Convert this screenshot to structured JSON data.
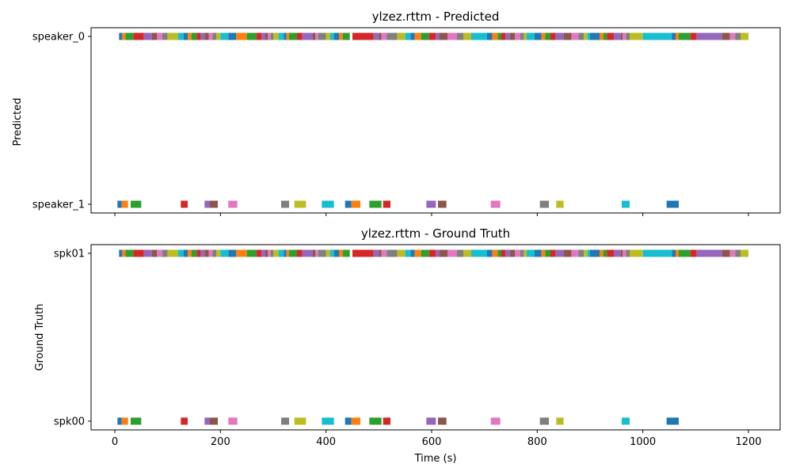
{
  "colors": [
    "#1f77b4",
    "#ff7f0e",
    "#2ca02c",
    "#d62728",
    "#9467bd",
    "#8c564b",
    "#e377c2",
    "#7f7f7f",
    "#bcbd22",
    "#17becf"
  ],
  "chart_data": [
    {
      "type": "timeline",
      "title": "ylzez.rttm - Predicted",
      "ylabel": "Predicted",
      "xlabel": "",
      "xlim": [
        -45,
        1260
      ],
      "xticks": [
        0,
        200,
        400,
        600,
        800,
        1000,
        1200
      ],
      "show_xtick_labels": false,
      "grid": false,
      "lanes": [
        {
          "label": "speaker_0",
          "segments": [
            [
              8,
              14
            ],
            [
              14,
              20
            ],
            [
              20,
              35
            ],
            [
              35,
              55
            ],
            [
              55,
              70
            ],
            [
              70,
              80
            ],
            [
              80,
              90
            ],
            [
              90,
              100
            ],
            [
              100,
              120
            ],
            [
              120,
              130
            ],
            [
              130,
              138
            ],
            [
              138,
              145
            ],
            [
              145,
              155
            ],
            [
              155,
              162
            ],
            [
              162,
              170
            ],
            [
              170,
              178
            ],
            [
              178,
              185
            ],
            [
              185,
              192
            ],
            [
              192,
              200
            ],
            [
              200,
              215
            ],
            [
              215,
              230
            ],
            [
              230,
              250
            ],
            [
              250,
              268
            ],
            [
              268,
              278
            ],
            [
              278,
              285
            ],
            [
              285,
              290
            ],
            [
              290,
              295
            ],
            [
              295,
              300
            ],
            [
              300,
              310
            ],
            [
              310,
              320
            ],
            [
              320,
              325
            ],
            [
              325,
              330
            ],
            [
              330,
              345
            ],
            [
              345,
              355
            ],
            [
              355,
              375
            ],
            [
              375,
              380
            ],
            [
              380,
              385
            ],
            [
              385,
              400
            ],
            [
              400,
              408
            ],
            [
              408,
              415
            ],
            [
              415,
              425
            ],
            [
              425,
              432
            ],
            [
              432,
              445
            ],
            [
              450,
              490
            ],
            [
              490,
              500
            ],
            [
              500,
              505
            ],
            [
              505,
              515
            ],
            [
              515,
              535
            ],
            [
              535,
              550
            ],
            [
              550,
              560
            ],
            [
              560,
              568
            ],
            [
              568,
              580
            ],
            [
              580,
              595
            ],
            [
              595,
              608
            ],
            [
              608,
              615
            ],
            [
              615,
              630
            ],
            [
              630,
              648
            ],
            [
              648,
              660
            ],
            [
              660,
              675
            ],
            [
              675,
              705
            ],
            [
              705,
              715
            ],
            [
              715,
              725
            ],
            [
              725,
              732
            ],
            [
              732,
              740
            ],
            [
              740,
              748
            ],
            [
              748,
              758
            ],
            [
              758,
              768
            ],
            [
              768,
              775
            ],
            [
              775,
              780
            ],
            [
              780,
              795
            ],
            [
              795,
              808
            ],
            [
              808,
              815
            ],
            [
              815,
              825
            ],
            [
              825,
              835
            ],
            [
              835,
              850
            ],
            [
              850,
              865
            ],
            [
              865,
              878
            ],
            [
              878,
              888
            ],
            [
              888,
              895
            ],
            [
              895,
              900
            ],
            [
              900,
              918
            ],
            [
              918,
              925
            ],
            [
              925,
              932
            ],
            [
              932,
              945
            ],
            [
              945,
              958
            ],
            [
              958,
              962
            ],
            [
              962,
              968
            ],
            [
              968,
              975
            ],
            [
              975,
              1000
            ],
            [
              1000,
              1055
            ],
            [
              1055,
              1062
            ],
            [
              1062,
              1068
            ],
            [
              1068,
              1090
            ],
            [
              1090,
              1102
            ],
            [
              1102,
              1150
            ],
            [
              1150,
              1165
            ],
            [
              1165,
              1175
            ],
            [
              1175,
              1185
            ],
            [
              1185,
              1200
            ]
          ]
        },
        {
          "label": "speaker_1",
          "segments": [
            [
              5,
              13
            ],
            [
              13,
              25
            ],
            [
              30,
              50
            ],
            [
              125,
              138
            ],
            [
              170,
              180
            ],
            [
              180,
              195
            ],
            [
              215,
              232
            ],
            [
              315,
              330
            ],
            [
              340,
              362
            ],
            [
              392,
              415
            ],
            [
              436,
              448
            ],
            [
              448,
              465
            ],
            [
              482,
              505
            ],
            [
              508,
              522
            ],
            [
              590,
              608
            ],
            [
              612,
              628
            ],
            [
              712,
              730
            ],
            [
              805,
              822
            ],
            [
              836,
              850
            ],
            [
              960,
              975
            ],
            [
              1045,
              1068
            ]
          ]
        }
      ]
    },
    {
      "type": "timeline",
      "title": "ylzez.rttm - Ground Truth",
      "ylabel": "Ground Truth",
      "xlabel": "Time (s)",
      "xlim": [
        -45,
        1260
      ],
      "xticks": [
        0,
        200,
        400,
        600,
        800,
        1000,
        1200
      ],
      "show_xtick_labels": true,
      "grid": false,
      "lanes": [
        {
          "label": "spk01",
          "segments": [
            [
              8,
              14
            ],
            [
              14,
              20
            ],
            [
              20,
              35
            ],
            [
              35,
              55
            ],
            [
              55,
              70
            ],
            [
              70,
              80
            ],
            [
              80,
              90
            ],
            [
              90,
              100
            ],
            [
              100,
              120
            ],
            [
              120,
              130
            ],
            [
              130,
              138
            ],
            [
              138,
              145
            ],
            [
              145,
              155
            ],
            [
              155,
              162
            ],
            [
              162,
              170
            ],
            [
              170,
              178
            ],
            [
              178,
              185
            ],
            [
              185,
              192
            ],
            [
              192,
              200
            ],
            [
              200,
              215
            ],
            [
              215,
              230
            ],
            [
              230,
              250
            ],
            [
              250,
              268
            ],
            [
              268,
              278
            ],
            [
              278,
              285
            ],
            [
              285,
              290
            ],
            [
              290,
              295
            ],
            [
              295,
              300
            ],
            [
              300,
              310
            ],
            [
              310,
              320
            ],
            [
              320,
              325
            ],
            [
              325,
              330
            ],
            [
              330,
              345
            ],
            [
              345,
              355
            ],
            [
              355,
              375
            ],
            [
              375,
              380
            ],
            [
              380,
              385
            ],
            [
              385,
              400
            ],
            [
              400,
              408
            ],
            [
              408,
              415
            ],
            [
              415,
              425
            ],
            [
              425,
              432
            ],
            [
              432,
              445
            ],
            [
              450,
              490
            ],
            [
              490,
              500
            ],
            [
              500,
              505
            ],
            [
              505,
              515
            ],
            [
              515,
              535
            ],
            [
              535,
              550
            ],
            [
              550,
              560
            ],
            [
              560,
              568
            ],
            [
              568,
              580
            ],
            [
              580,
              595
            ],
            [
              595,
              608
            ],
            [
              608,
              615
            ],
            [
              615,
              630
            ],
            [
              630,
              648
            ],
            [
              648,
              660
            ],
            [
              660,
              675
            ],
            [
              675,
              705
            ],
            [
              705,
              715
            ],
            [
              715,
              725
            ],
            [
              725,
              732
            ],
            [
              732,
              740
            ],
            [
              740,
              748
            ],
            [
              748,
              758
            ],
            [
              758,
              768
            ],
            [
              768,
              775
            ],
            [
              775,
              780
            ],
            [
              780,
              795
            ],
            [
              795,
              808
            ],
            [
              808,
              815
            ],
            [
              815,
              825
            ],
            [
              825,
              835
            ],
            [
              835,
              850
            ],
            [
              850,
              865
            ],
            [
              865,
              878
            ],
            [
              878,
              888
            ],
            [
              888,
              895
            ],
            [
              895,
              900
            ],
            [
              900,
              918
            ],
            [
              918,
              925
            ],
            [
              925,
              932
            ],
            [
              932,
              945
            ],
            [
              945,
              958
            ],
            [
              958,
              962
            ],
            [
              962,
              968
            ],
            [
              968,
              975
            ],
            [
              975,
              1000
            ],
            [
              1000,
              1055
            ],
            [
              1055,
              1062
            ],
            [
              1062,
              1068
            ],
            [
              1068,
              1090
            ],
            [
              1090,
              1102
            ],
            [
              1102,
              1150
            ],
            [
              1150,
              1165
            ],
            [
              1165,
              1175
            ],
            [
              1175,
              1185
            ],
            [
              1185,
              1200
            ]
          ]
        },
        {
          "label": "spk00",
          "segments": [
            [
              5,
              13
            ],
            [
              13,
              25
            ],
            [
              30,
              50
            ],
            [
              125,
              138
            ],
            [
              170,
              180
            ],
            [
              180,
              195
            ],
            [
              215,
              232
            ],
            [
              315,
              330
            ],
            [
              340,
              362
            ],
            [
              392,
              415
            ],
            [
              436,
              448
            ],
            [
              448,
              465
            ],
            [
              482,
              505
            ],
            [
              508,
              522
            ],
            [
              590,
              608
            ],
            [
              612,
              628
            ],
            [
              712,
              730
            ],
            [
              805,
              822
            ],
            [
              836,
              850
            ],
            [
              960,
              975
            ],
            [
              1045,
              1068
            ]
          ]
        }
      ]
    }
  ]
}
